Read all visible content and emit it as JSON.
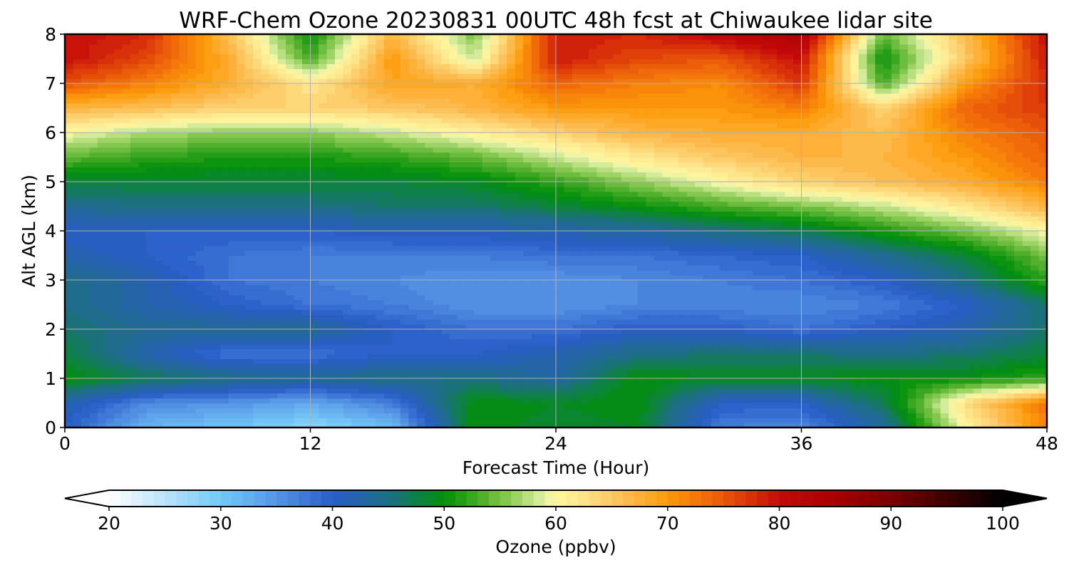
{
  "chart_data": {
    "type": "heatmap",
    "title": "WRF-Chem Ozone  20230831 00UTC 48h fcst at Chiwaukee lidar site",
    "xlabel": "Forecast Time (Hour)",
    "ylabel": "Alt AGL (km)",
    "xlim": [
      0,
      48
    ],
    "ylim": [
      0,
      8
    ],
    "x_ticks": [
      "0",
      "12",
      "24",
      "36",
      "48"
    ],
    "y_ticks": [
      "0",
      "1",
      "2",
      "3",
      "4",
      "5",
      "6",
      "7",
      "8"
    ],
    "grid": true,
    "x_hours": [
      0,
      4,
      8,
      12,
      16,
      20,
      24,
      28,
      32,
      36,
      40,
      44,
      48
    ],
    "z_km": [
      0,
      0.5,
      1,
      1.5,
      2,
      2.5,
      3,
      3.5,
      4,
      4.5,
      5,
      5.5,
      6,
      6.5,
      7,
      7.5,
      8
    ],
    "ozone_ppbv": [
      [
        40,
        32,
        30,
        28,
        31,
        50,
        48,
        49,
        37,
        36,
        43,
        60,
        72
      ],
      [
        42,
        36,
        35,
        33,
        37,
        50,
        49,
        50,
        40,
        40,
        47,
        63,
        73
      ],
      [
        50,
        47,
        45,
        44,
        45,
        45,
        43,
        50,
        49,
        49,
        50,
        50,
        52
      ],
      [
        48,
        42,
        38,
        38,
        40,
        40,
        42,
        45,
        46,
        46,
        45,
        46,
        48
      ],
      [
        46,
        44,
        44,
        44,
        40,
        38,
        38,
        40,
        40,
        38,
        40,
        42,
        46
      ],
      [
        45,
        42,
        40,
        38,
        37,
        35,
        35,
        36,
        36,
        36,
        37,
        40,
        46
      ],
      [
        45,
        42,
        38,
        37,
        36,
        35,
        35,
        36,
        37,
        38,
        40,
        45,
        52
      ],
      [
        42,
        40,
        38,
        37,
        37,
        37,
        38,
        38,
        39,
        40,
        44,
        48,
        55
      ],
      [
        40,
        40,
        40,
        40,
        41,
        41,
        42,
        43,
        45,
        47,
        51,
        55,
        60
      ],
      [
        44,
        45,
        45,
        45,
        46,
        46,
        48,
        50,
        53,
        55,
        58,
        62,
        67
      ],
      [
        48,
        48,
        48,
        48,
        48,
        49,
        52,
        56,
        60,
        64,
        66,
        68,
        72
      ],
      [
        54,
        52,
        51,
        51,
        52,
        54,
        58,
        62,
        65,
        67,
        67,
        70,
        74
      ],
      [
        60,
        57,
        56,
        56,
        58,
        61,
        64,
        67,
        68,
        68,
        66,
        72,
        75
      ],
      [
        67,
        66,
        64,
        64,
        65,
        67,
        70,
        70,
        70,
        72,
        64,
        74,
        77
      ],
      [
        75,
        72,
        68,
        62,
        69,
        68,
        74,
        72,
        71,
        77,
        53,
        70,
        78
      ],
      [
        80,
        76,
        68,
        53,
        70,
        58,
        79,
        76,
        75,
        80,
        50,
        65,
        79
      ],
      [
        80,
        78,
        66,
        50,
        67,
        55,
        79,
        78,
        81,
        84,
        54,
        66,
        80
      ]
    ],
    "colorbar": {
      "label": "Ozone  (ppbv)",
      "min": 20,
      "max": 100,
      "step": 1,
      "ticks": [
        "20",
        "30",
        "40",
        "50",
        "60",
        "70",
        "80",
        "90",
        "100"
      ],
      "extend": "both",
      "color_stops": [
        [
          20,
          "#ffffff"
        ],
        [
          30,
          "#74c8f7"
        ],
        [
          34,
          "#5da0ea"
        ],
        [
          40,
          "#2a5cc8"
        ],
        [
          45,
          "#1e6e86"
        ],
        [
          50,
          "#00900a"
        ],
        [
          53,
          "#46aa25"
        ],
        [
          56,
          "#90cd58"
        ],
        [
          59,
          "#e2f1a8"
        ],
        [
          60,
          "#fff7a0"
        ],
        [
          62,
          "#fde891"
        ],
        [
          66,
          "#fdbf55"
        ],
        [
          70,
          "#fd9a0a"
        ],
        [
          75,
          "#ea570a"
        ],
        [
          80,
          "#c50a0a"
        ],
        [
          85,
          "#a80000"
        ],
        [
          90,
          "#7a0000"
        ],
        [
          95,
          "#3c0000"
        ],
        [
          100,
          "#000000"
        ]
      ]
    }
  }
}
